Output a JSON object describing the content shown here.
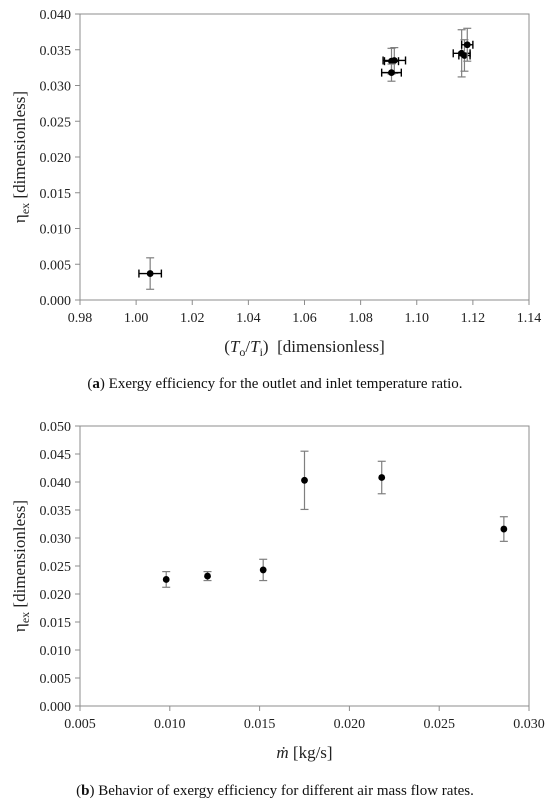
{
  "captions": {
    "a_letter": "a",
    "a_text": " Exergy efficiency for the outlet and inlet temperature ratio.",
    "b_letter": "b",
    "b_text": " Behavior of exergy efficiency for different air mass flow rates."
  },
  "chart_data": [
    {
      "type": "scatter",
      "panel": "a",
      "title": "",
      "ylabel_main": "η",
      "ylabel_sub": "ex",
      "ylabel_rest": "[dimensionless]",
      "xlabel_parts": [
        "(",
        "T",
        "o",
        "/",
        "T",
        "i",
        ")",
        "[dimensionless]"
      ],
      "xlim": [
        0.98,
        1.14
      ],
      "ylim": [
        0.0,
        0.04
      ],
      "x_ticks": [
        "0.98",
        "1.00",
        "1.02",
        "1.04",
        "1.06",
        "1.08",
        "1.10",
        "1.12",
        "1.14"
      ],
      "y_ticks": [
        "0.000",
        "0.005",
        "0.010",
        "0.015",
        "0.020",
        "0.025",
        "0.030",
        "0.035",
        "0.040"
      ],
      "grid": false,
      "legend": "none",
      "marker_color": "#000000",
      "errorbar_color": "#7f7f7f",
      "points": [
        {
          "x": 1.005,
          "y": 0.0037,
          "xerr": 0.004,
          "yerr": 0.0022
        },
        {
          "x": 1.091,
          "y": 0.0334,
          "xerr": 0.0025,
          "yerr": 0.0018
        },
        {
          "x": 1.092,
          "y": 0.0335,
          "xerr": 0.004,
          "yerr": 0.0018
        },
        {
          "x": 1.091,
          "y": 0.0318,
          "xerr": 0.0035,
          "yerr": 0.0012
        },
        {
          "x": 1.116,
          "y": 0.0345,
          "xerr": 0.003,
          "yerr": 0.0033
        },
        {
          "x": 1.117,
          "y": 0.0342,
          "xerr": 0.002,
          "yerr": 0.0022
        },
        {
          "x": 1.118,
          "y": 0.0357,
          "xerr": 0.002,
          "yerr": 0.0023
        }
      ]
    },
    {
      "type": "scatter",
      "panel": "b",
      "title": "",
      "ylabel_main": "η",
      "ylabel_sub": "ex",
      "ylabel_rest": "[dimensionless]",
      "xlabel_main": "ṁ",
      "xlabel_rest": "[kg/s]",
      "xlim": [
        0.005,
        0.03
      ],
      "ylim": [
        0.0,
        0.05
      ],
      "x_ticks": [
        "0.005",
        "0.010",
        "0.015",
        "0.020",
        "0.025",
        "0.030"
      ],
      "y_ticks": [
        "0.000",
        "0.005",
        "0.010",
        "0.015",
        "0.020",
        "0.025",
        "0.030",
        "0.035",
        "0.040",
        "0.045",
        "0.050"
      ],
      "grid": false,
      "legend": "none",
      "marker_color": "#000000",
      "errorbar_color": "#7f7f7f",
      "points": [
        {
          "x": 0.0098,
          "y": 0.0226,
          "yerr": 0.0014
        },
        {
          "x": 0.0121,
          "y": 0.0232,
          "xerr": 0.0,
          "yerr": 0.0008
        },
        {
          "x": 0.0152,
          "y": 0.0243,
          "yerr": 0.0019
        },
        {
          "x": 0.0175,
          "y": 0.0403,
          "yerr": 0.0052
        },
        {
          "x": 0.0218,
          "y": 0.0408,
          "yerr": 0.0029
        },
        {
          "x": 0.0286,
          "y": 0.0316,
          "yerr": 0.0022
        }
      ]
    }
  ]
}
